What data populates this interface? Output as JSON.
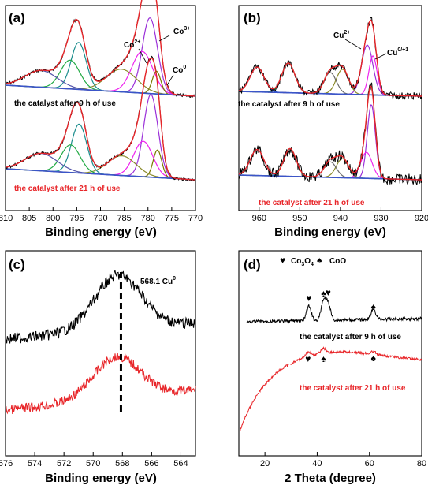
{
  "chart_data": [
    {
      "panel_label": "(a)",
      "type": "line",
      "xlabel": "Binding energy (eV)",
      "xlim": [
        810,
        770
      ],
      "x_ticks": [
        810,
        805,
        800,
        795,
        790,
        785,
        780,
        775,
        770
      ],
      "annotations": [
        "Co3+",
        "Co2+",
        "Co0"
      ],
      "curve_labels": [
        {
          "text": "the catalyst after 9 h of use",
          "color": "#000000"
        },
        {
          "text": "the catalyst after 21 h of use",
          "color": "#e8262a"
        }
      ],
      "spectra": [
        {
          "name": "the catalyst after 9 h of use",
          "baseline_offset": 1.0,
          "peaks": [
            {
              "center": 779.6,
              "height": 1.0,
              "width": 1.6,
              "color": "#9b30d9"
            },
            {
              "center": 781.2,
              "height": 0.55,
              "width": 2.2,
              "color": "#ee22ee"
            },
            {
              "center": 778.2,
              "height": 0.3,
              "width": 0.9,
              "color": "#7a7a00"
            },
            {
              "center": 785.6,
              "height": 0.3,
              "width": 3.2,
              "color": "#8a8a2a"
            },
            {
              "center": 794.6,
              "height": 0.62,
              "width": 1.6,
              "color": "#1a8c8c"
            },
            {
              "center": 796.4,
              "height": 0.38,
              "width": 2.0,
              "color": "#22aa44"
            },
            {
              "center": 802.5,
              "height": 0.22,
              "width": 3.4,
              "color": "#5555aa"
            }
          ]
        },
        {
          "name": "the catalyst after 21 h of use",
          "baseline_offset": 0.0,
          "peaks": [
            {
              "center": 779.4,
              "height": 1.05,
              "width": 1.5,
              "color": "#9b30d9"
            },
            {
              "center": 781.0,
              "height": 0.45,
              "width": 2.0,
              "color": "#ee22ee"
            },
            {
              "center": 778.0,
              "height": 0.35,
              "width": 0.9,
              "color": "#7a7a00"
            },
            {
              "center": 785.5,
              "height": 0.25,
              "width": 3.0,
              "color": "#8a8a2a"
            },
            {
              "center": 794.5,
              "height": 0.62,
              "width": 1.6,
              "color": "#1a8c8c"
            },
            {
              "center": 796.3,
              "height": 0.35,
              "width": 2.0,
              "color": "#22aa44"
            },
            {
              "center": 802.5,
              "height": 0.22,
              "width": 3.4,
              "color": "#5555aa"
            }
          ]
        }
      ]
    },
    {
      "panel_label": "(b)",
      "type": "line",
      "xlabel": "Binding energy (eV)",
      "xlim": [
        965,
        920
      ],
      "x_ticks": [
        960,
        950,
        940,
        930,
        920
      ],
      "annotations": [
        "Cu2+",
        "Cu0/+1"
      ],
      "curve_labels": [
        {
          "text": "the catalyst after 9 h of use",
          "color": "#000000"
        },
        {
          "text": "the catalyst after 21 h of use",
          "color": "#e8262a"
        }
      ],
      "spectra": [
        {
          "name": "the catalyst after 9 h of use",
          "baseline_offset": 1.0,
          "peaks": [
            {
              "center": 933.4,
              "height": 0.7,
              "width": 1.4,
              "color": "#9b30d9"
            },
            {
              "center": 932.0,
              "height": 0.55,
              "width": 1.0,
              "color": "#ee22ee"
            },
            {
              "center": 939.5,
              "height": 0.35,
              "width": 1.5,
              "color": "#8a8a2a"
            },
            {
              "center": 942.5,
              "height": 0.3,
              "width": 1.5,
              "color": "#6a6a6a"
            },
            {
              "center": 952.8,
              "height": 0.42,
              "width": 1.6,
              "color": "#22aa44"
            },
            {
              "center": 960.5,
              "height": 0.35,
              "width": 1.7,
              "color": "#1a4ccc"
            }
          ]
        },
        {
          "name": "the catalyst after 21 h of use",
          "baseline_offset": 0.0,
          "peaks": [
            {
              "center": 932.4,
              "height": 0.85,
              "width": 1.0,
              "color": "#9b30d9"
            },
            {
              "center": 933.6,
              "height": 0.3,
              "width": 1.4,
              "color": "#ee22ee"
            },
            {
              "center": 939.5,
              "height": 0.22,
              "width": 1.5,
              "color": "#8a8a2a"
            },
            {
              "center": 942.5,
              "height": 0.18,
              "width": 1.5,
              "color": "#6a6a6a"
            },
            {
              "center": 952.4,
              "height": 0.32,
              "width": 1.5,
              "color": "#22aa44"
            },
            {
              "center": 960.5,
              "height": 0.3,
              "width": 1.7,
              "color": "#1a4ccc"
            }
          ]
        }
      ]
    },
    {
      "panel_label": "(c)",
      "type": "line",
      "xlabel": "Binding energy (eV)",
      "xlim": [
        576,
        563
      ],
      "x_ticks": [
        576,
        574,
        572,
        570,
        568,
        566,
        564
      ],
      "annotations": [
        "568.1 Cu0"
      ],
      "reference_line": 568.1,
      "series": [
        {
          "color": "#000000",
          "baseline_offset": 1.0,
          "peak_center": 568.3,
          "peak_height": 0.55
        },
        {
          "color": "#e8262a",
          "baseline_offset": 0.0,
          "peak_center": 568.4,
          "peak_height": 0.42
        }
      ]
    },
    {
      "panel_label": "(d)",
      "type": "line",
      "xlabel": "2 Theta (degree)",
      "xlim": [
        10,
        80
      ],
      "x_ticks": [
        20,
        40,
        60,
        80
      ],
      "legend": [
        "♥",
        "Co3O4",
        "♠",
        "CoO"
      ],
      "curve_labels": [
        {
          "text": "the catalyst after 9 h of use",
          "color": "#000000"
        },
        {
          "text": "the catalyst after 21 h of use",
          "color": "#e8262a"
        }
      ],
      "series": [
        {
          "name": "the catalyst after 9 h of use",
          "color": "#000000",
          "peaks": [
            {
              "x": 36.8,
              "height": 0.3,
              "marker": "heart"
            },
            {
              "x": 42.4,
              "height": 0.4,
              "marker": "spade"
            },
            {
              "x": 44.2,
              "height": 0.35,
              "marker": "heart"
            },
            {
              "x": 61.5,
              "height": 0.22,
              "marker": "spade"
            }
          ]
        },
        {
          "name": "the catalyst after 21 h of use",
          "color": "#e8262a",
          "peaks": [
            {
              "x": 36.5,
              "height": 0.1,
              "marker": "heart"
            },
            {
              "x": 42.4,
              "height": 0.1,
              "marker": "spade"
            },
            {
              "x": 61.5,
              "height": 0.06,
              "marker": "spade"
            }
          ]
        }
      ]
    }
  ]
}
